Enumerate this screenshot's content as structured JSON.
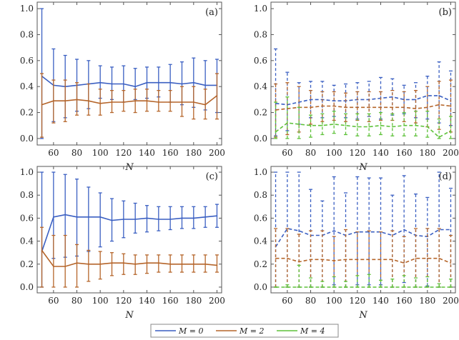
{
  "colors": {
    "M0": "#3a5fc2",
    "M2": "#b5652a",
    "M4": "#5ec23a"
  },
  "legend": [
    {
      "key": "M0",
      "label": "M = 0",
      "color": "#3a5fc2"
    },
    {
      "key": "M2",
      "label": "M = 2",
      "color": "#b5652a"
    },
    {
      "key": "M4",
      "label": "M = 4",
      "color": "#5ec23a"
    }
  ],
  "chart_data": [
    {
      "type": "line",
      "panel": "(a)",
      "xlabel": "N",
      "ylabel": "",
      "line_style": "solid",
      "x": [
        50,
        60,
        70,
        80,
        90,
        100,
        110,
        120,
        130,
        140,
        150,
        160,
        170,
        180,
        190,
        200
      ],
      "xlim": [
        46,
        204
      ],
      "ylim": [
        -0.05,
        1.05
      ],
      "xticks": [
        "60",
        "80",
        "100",
        "120",
        "140",
        "160",
        "180",
        "200"
      ],
      "yticks": [
        "0.0",
        "0.2",
        "0.4",
        "0.6",
        "0.8",
        "1.0"
      ],
      "series": [
        {
          "key": "M0",
          "name": "M = 0",
          "y": [
            0.48,
            0.41,
            0.4,
            0.41,
            0.42,
            0.43,
            0.42,
            0.42,
            0.4,
            0.43,
            0.43,
            0.43,
            0.42,
            0.43,
            0.41,
            0.41
          ],
          "lo": [
            0.0,
            0.13,
            0.16,
            0.21,
            0.23,
            0.31,
            0.3,
            0.28,
            0.3,
            0.31,
            0.32,
            0.28,
            0.26,
            0.24,
            0.22,
            0.2
          ],
          "hi": [
            1.0,
            0.69,
            0.64,
            0.61,
            0.6,
            0.56,
            0.55,
            0.56,
            0.54,
            0.55,
            0.55,
            0.57,
            0.59,
            0.62,
            0.6,
            0.61
          ]
        },
        {
          "key": "M2",
          "name": "M = 2",
          "y": [
            0.26,
            0.29,
            0.29,
            0.3,
            0.29,
            0.27,
            0.28,
            0.28,
            0.29,
            0.29,
            0.28,
            0.28,
            0.28,
            0.28,
            0.26,
            0.33
          ],
          "lo": [
            0.01,
            0.12,
            0.13,
            0.18,
            0.18,
            0.18,
            0.2,
            0.21,
            0.2,
            0.21,
            0.21,
            0.21,
            0.17,
            0.15,
            0.15,
            0.15
          ],
          "hi": [
            0.5,
            0.45,
            0.45,
            0.43,
            0.42,
            0.38,
            0.37,
            0.37,
            0.38,
            0.38,
            0.37,
            0.37,
            0.4,
            0.4,
            0.38,
            0.5
          ]
        }
      ]
    },
    {
      "type": "line",
      "panel": "(b)",
      "xlabel": "N",
      "ylabel": "",
      "line_style": "dashed",
      "x": [
        50,
        60,
        70,
        80,
        90,
        100,
        110,
        120,
        130,
        140,
        150,
        160,
        170,
        180,
        190,
        200
      ],
      "xlim": [
        46,
        204
      ],
      "ylim": [
        -0.05,
        1.05
      ],
      "xticks": [
        "60",
        "80",
        "100",
        "120",
        "140",
        "160",
        "180",
        "200"
      ],
      "yticks": [
        "0.0",
        "0.2",
        "0.4",
        "0.6",
        "0.8",
        "1.0"
      ],
      "series": [
        {
          "key": "M0",
          "name": "M = 0",
          "y": [
            0.27,
            0.26,
            0.28,
            0.3,
            0.3,
            0.29,
            0.29,
            0.3,
            0.3,
            0.31,
            0.32,
            0.3,
            0.3,
            0.33,
            0.33,
            0.29
          ],
          "lo": [
            0.02,
            0.06,
            0.11,
            0.16,
            0.16,
            0.17,
            0.16,
            0.15,
            0.17,
            0.15,
            0.18,
            0.19,
            0.16,
            0.15,
            0.12,
            0.1
          ],
          "hi": [
            0.69,
            0.51,
            0.43,
            0.44,
            0.44,
            0.41,
            0.42,
            0.43,
            0.44,
            0.47,
            0.46,
            0.41,
            0.43,
            0.48,
            0.59,
            0.52
          ]
        },
        {
          "key": "M2",
          "name": "M = 2",
          "y": [
            0.22,
            0.23,
            0.24,
            0.24,
            0.25,
            0.25,
            0.24,
            0.24,
            0.24,
            0.24,
            0.24,
            0.24,
            0.23,
            0.24,
            0.26,
            0.25
          ],
          "lo": [
            0.01,
            0.03,
            0.05,
            0.11,
            0.13,
            0.14,
            0.13,
            0.14,
            0.13,
            0.14,
            0.14,
            0.13,
            0.12,
            0.09,
            0.07,
            0.05
          ],
          "hi": [
            0.42,
            0.43,
            0.4,
            0.37,
            0.36,
            0.36,
            0.35,
            0.36,
            0.36,
            0.36,
            0.37,
            0.36,
            0.37,
            0.4,
            0.44,
            0.45
          ]
        },
        {
          "key": "M4",
          "name": "M = 4",
          "y": [
            0.05,
            0.12,
            0.11,
            0.1,
            0.1,
            0.11,
            0.1,
            0.09,
            0.09,
            0.1,
            0.09,
            0.1,
            0.1,
            0.09,
            0.01,
            0.06
          ],
          "lo": [
            0.0,
            0.0,
            0.0,
            0.01,
            0.03,
            0.04,
            0.03,
            0.02,
            0.02,
            0.03,
            0.02,
            0.02,
            0.02,
            0.01,
            0.0,
            0.0
          ],
          "hi": [
            0.28,
            0.32,
            0.24,
            0.18,
            0.19,
            0.21,
            0.19,
            0.19,
            0.19,
            0.2,
            0.19,
            0.2,
            0.21,
            0.21,
            0.15,
            0.17
          ]
        }
      ]
    },
    {
      "type": "line",
      "panel": "(c)",
      "xlabel": "N",
      "ylabel": "",
      "line_style": "solid",
      "x": [
        50,
        60,
        70,
        80,
        90,
        100,
        110,
        120,
        130,
        140,
        150,
        160,
        170,
        180,
        190,
        200
      ],
      "xlim": [
        46,
        204
      ],
      "ylim": [
        -0.05,
        1.05
      ],
      "xticks": [
        "60",
        "80",
        "100",
        "120",
        "140",
        "160",
        "180",
        "200"
      ],
      "yticks": [
        "0.0",
        "0.2",
        "0.4",
        "0.6",
        "0.8",
        "1.0"
      ],
      "series": [
        {
          "key": "M0",
          "name": "M = 0",
          "y": [
            0.31,
            0.61,
            0.63,
            0.61,
            0.61,
            0.61,
            0.58,
            0.59,
            0.59,
            0.6,
            0.59,
            0.59,
            0.6,
            0.6,
            0.61,
            0.62
          ],
          "lo": [
            0.0,
            0.25,
            0.26,
            0.27,
            0.31,
            0.35,
            0.4,
            0.43,
            0.47,
            0.48,
            0.49,
            0.5,
            0.51,
            0.51,
            0.52,
            0.52
          ],
          "hi": [
            1.0,
            1.0,
            0.98,
            0.94,
            0.87,
            0.82,
            0.77,
            0.75,
            0.73,
            0.71,
            0.7,
            0.7,
            0.7,
            0.7,
            0.7,
            0.72
          ]
        },
        {
          "key": "M2",
          "name": "M = 2",
          "y": [
            0.32,
            0.18,
            0.18,
            0.21,
            0.2,
            0.2,
            0.21,
            0.21,
            0.2,
            0.21,
            0.21,
            0.2,
            0.2,
            0.2,
            0.2,
            0.19
          ],
          "lo": [
            0.0,
            0.0,
            0.0,
            0.0,
            0.05,
            0.07,
            0.1,
            0.11,
            0.11,
            0.12,
            0.13,
            0.13,
            0.13,
            0.13,
            0.13,
            0.13
          ],
          "hi": [
            0.52,
            0.45,
            0.45,
            0.37,
            0.32,
            0.31,
            0.3,
            0.29,
            0.28,
            0.28,
            0.28,
            0.28,
            0.28,
            0.28,
            0.28,
            0.28
          ]
        }
      ]
    },
    {
      "type": "line",
      "panel": "(d)",
      "xlabel": "N",
      "ylabel": "",
      "line_style": "dashed",
      "x": [
        50,
        60,
        70,
        80,
        90,
        100,
        110,
        120,
        130,
        140,
        150,
        160,
        170,
        180,
        190,
        200
      ],
      "xlim": [
        46,
        204
      ],
      "ylim": [
        -0.05,
        1.05
      ],
      "xticks": [
        "60",
        "80",
        "100",
        "120",
        "140",
        "160",
        "180",
        "200"
      ],
      "yticks": [
        "0.0",
        "0.2",
        "0.4",
        "0.6",
        "0.8",
        "1.0"
      ],
      "series": [
        {
          "key": "M0",
          "name": "M = 0",
          "y": [
            0.35,
            0.51,
            0.49,
            0.45,
            0.45,
            0.49,
            0.45,
            0.48,
            0.48,
            0.48,
            0.45,
            0.5,
            0.45,
            0.44,
            0.5,
            0.5
          ],
          "lo": [
            0.0,
            0.0,
            0.0,
            0.0,
            0.0,
            0.02,
            0.0,
            0.02,
            0.02,
            0.02,
            0.0,
            0.04,
            0.0,
            0.01,
            0.0,
            0.0
          ],
          "hi": [
            1.0,
            1.0,
            1.0,
            0.85,
            0.75,
            0.96,
            0.82,
            0.96,
            0.95,
            0.95,
            0.8,
            0.97,
            0.81,
            0.78,
            1.0,
            0.86
          ]
        },
        {
          "key": "M2",
          "name": "M = 2",
          "y": [
            0.25,
            0.25,
            0.22,
            0.24,
            0.24,
            0.23,
            0.24,
            0.24,
            0.24,
            0.24,
            0.24,
            0.21,
            0.25,
            0.25,
            0.25,
            0.21
          ],
          "lo": [
            0.0,
            0.0,
            0.0,
            0.0,
            0.0,
            0.0,
            0.0,
            0.0,
            0.0,
            0.0,
            0.0,
            0.0,
            0.0,
            0.0,
            0.0,
            0.0
          ],
          "hi": [
            0.51,
            0.51,
            0.46,
            0.49,
            0.49,
            0.44,
            0.5,
            0.48,
            0.49,
            0.48,
            0.49,
            0.44,
            0.51,
            0.51,
            0.51,
            0.45
          ]
        },
        {
          "key": "M4",
          "name": "M = 4",
          "y": [
            0.0,
            0.0,
            0.0,
            0.0,
            0.0,
            0.0,
            0.0,
            0.0,
            0.0,
            0.0,
            0.0,
            0.0,
            0.0,
            0.0,
            0.0,
            0.0
          ],
          "lo": [
            0.0,
            0.0,
            0.0,
            0.0,
            0.0,
            0.0,
            0.0,
            0.0,
            0.0,
            0.0,
            0.0,
            0.0,
            0.0,
            0.0,
            0.0,
            0.0
          ],
          "hi": [
            0.0,
            0.02,
            0.19,
            0.08,
            0.05,
            0.09,
            0.05,
            0.1,
            0.11,
            0.06,
            0.07,
            0.1,
            0.08,
            0.09,
            0.03,
            0.07
          ]
        }
      ]
    }
  ]
}
